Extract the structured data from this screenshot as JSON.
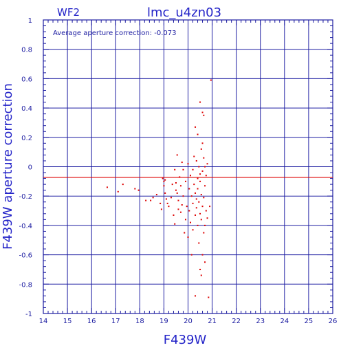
{
  "chart_data": {
    "type": "scatter",
    "panel_label": "WF2",
    "title": "lmc_u4zn03",
    "xlabel": "F439W",
    "ylabel": "F439W aperture correction",
    "annotation": "Average aperture correction:  -0.073",
    "xlim": [
      14,
      26
    ],
    "ylim": [
      -1,
      1
    ],
    "x_ticks": [
      "14",
      "15",
      "16",
      "17",
      "18",
      "19",
      "20",
      "21",
      "22",
      "23",
      "24",
      "25",
      "26"
    ],
    "y_ticks": [
      "1",
      "0.8",
      "0.6",
      "0.4",
      "0.2",
      "0",
      "-0.2",
      "-0.4",
      "-0.6",
      "-0.8",
      "-1"
    ],
    "grid": true,
    "reference_line": -0.073,
    "colors": {
      "axis": "#1a1aa0",
      "grid": "#1a1aa0",
      "label": "#2323c8",
      "points": "#dd0000",
      "reference_line": "#dd0000"
    },
    "points": [
      [
        16.65,
        -0.14
      ],
      [
        17.3,
        -0.12
      ],
      [
        17.1,
        -0.17
      ],
      [
        17.8,
        -0.15
      ],
      [
        17.95,
        -0.16
      ],
      [
        18.25,
        -0.23
      ],
      [
        18.45,
        -0.23
      ],
      [
        18.55,
        -0.21
      ],
      [
        18.7,
        -0.19
      ],
      [
        18.85,
        -0.25
      ],
      [
        18.9,
        -0.29
      ],
      [
        18.95,
        -0.08
      ],
      [
        19.0,
        -0.1
      ],
      [
        19.0,
        -0.13
      ],
      [
        19.05,
        -0.09
      ],
      [
        19.05,
        -0.18
      ],
      [
        19.1,
        -0.22
      ],
      [
        19.15,
        -0.25
      ],
      [
        19.2,
        -0.27
      ],
      [
        19.3,
        -0.21
      ],
      [
        19.35,
        -0.12
      ],
      [
        19.4,
        -0.33
      ],
      [
        19.45,
        -0.02
      ],
      [
        19.45,
        -0.39
      ],
      [
        19.5,
        -0.11
      ],
      [
        19.5,
        -0.16
      ],
      [
        19.55,
        0.08
      ],
      [
        19.55,
        -0.18
      ],
      [
        19.6,
        -0.23
      ],
      [
        19.6,
        -0.29
      ],
      [
        19.65,
        -0.07
      ],
      [
        19.7,
        -0.13
      ],
      [
        19.7,
        -0.31
      ],
      [
        19.75,
        0.03
      ],
      [
        19.75,
        -0.26
      ],
      [
        19.8,
        -0.02
      ],
      [
        19.8,
        -0.2
      ],
      [
        19.85,
        -0.45
      ],
      [
        19.9,
        -0.1
      ],
      [
        19.9,
        -0.36
      ],
      [
        19.95,
        -0.27
      ],
      [
        20.0,
        0.02
      ],
      [
        20.0,
        -0.48
      ],
      [
        20.05,
        -0.15
      ],
      [
        20.05,
        -0.3
      ],
      [
        20.1,
        -0.38
      ],
      [
        20.1,
        -0.06
      ],
      [
        20.15,
        -0.2
      ],
      [
        20.15,
        -0.6
      ],
      [
        20.2,
        -0.02
      ],
      [
        20.2,
        -0.25
      ],
      [
        20.2,
        -0.43
      ],
      [
        20.25,
        0.07
      ],
      [
        20.25,
        -0.12
      ],
      [
        20.3,
        0.27
      ],
      [
        20.3,
        -0.18
      ],
      [
        20.3,
        -0.33
      ],
      [
        20.3,
        -0.88
      ],
      [
        20.35,
        0.04
      ],
      [
        20.35,
        -0.22
      ],
      [
        20.35,
        -0.28
      ],
      [
        20.4,
        0.22
      ],
      [
        20.4,
        -0.08
      ],
      [
        20.4,
        -0.15
      ],
      [
        20.4,
        -0.4
      ],
      [
        20.45,
        0.0
      ],
      [
        20.45,
        -0.24
      ],
      [
        20.45,
        -0.52
      ],
      [
        20.5,
        0.44
      ],
      [
        20.5,
        -0.05
      ],
      [
        20.5,
        -0.1
      ],
      [
        20.5,
        -0.32
      ],
      [
        20.5,
        -0.7
      ],
      [
        20.55,
        0.12
      ],
      [
        20.55,
        -0.19
      ],
      [
        20.55,
        -0.36
      ],
      [
        20.55,
        -0.74
      ],
      [
        20.6,
        0.37
      ],
      [
        20.6,
        0.16
      ],
      [
        20.6,
        -0.03
      ],
      [
        20.6,
        -0.27
      ],
      [
        20.6,
        -0.6
      ],
      [
        20.65,
        0.35
      ],
      [
        20.65,
        0.06
      ],
      [
        20.65,
        -0.21
      ],
      [
        20.65,
        -0.45
      ],
      [
        20.7,
        0.0
      ],
      [
        20.7,
        -0.13
      ],
      [
        20.7,
        -0.4
      ],
      [
        20.7,
        -0.65
      ],
      [
        20.75,
        -0.06
      ],
      [
        20.75,
        -0.3
      ],
      [
        20.8,
        0.02
      ],
      [
        20.8,
        -0.35
      ],
      [
        20.85,
        -0.89
      ],
      [
        20.9,
        -0.27
      ],
      [
        20.95,
        0.59
      ]
    ]
  }
}
